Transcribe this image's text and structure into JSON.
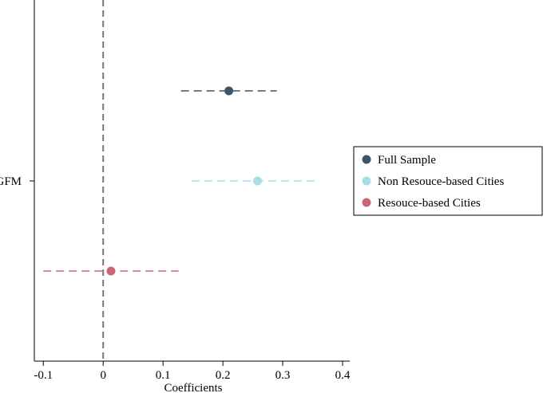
{
  "chart_data": {
    "type": "scatter",
    "subtype": "coefficient-plot",
    "xlabel": "Coefficients",
    "xlim": [
      -0.115,
      0.412
    ],
    "xticks": [
      -0.1,
      0,
      0.1,
      0.2,
      0.3,
      0.4
    ],
    "xtick_labels": [
      "-0.1",
      "0",
      "0.1",
      "0.2",
      "0.3",
      "0.4"
    ],
    "reference_line": 0,
    "category": "GFM",
    "grid": false,
    "legend_position": "right",
    "series": [
      {
        "name": "Full Sample",
        "estimate": 0.21,
        "ci_low": 0.13,
        "ci_high": 0.29,
        "color": "#3d5566"
      },
      {
        "name": "Non Resouce-based Cities",
        "estimate": 0.258,
        "ci_low": 0.148,
        "ci_high": 0.36,
        "color": "#a8dce6"
      },
      {
        "name": "Resouce-based Cities",
        "estimate": 0.013,
        "ci_low": -0.1,
        "ci_high": 0.126,
        "color": "#cc6677"
      }
    ]
  }
}
